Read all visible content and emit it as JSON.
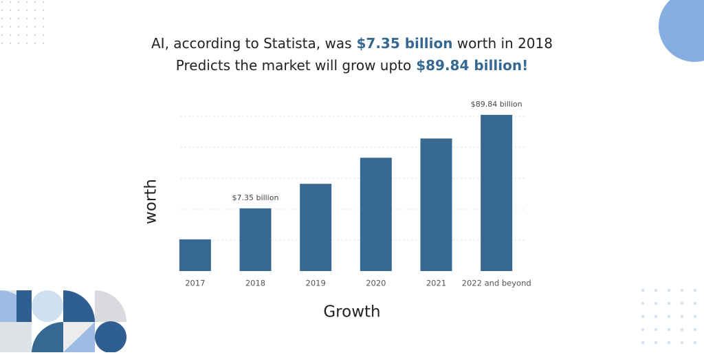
{
  "chart_data": {
    "type": "bar",
    "title_lines": [
      [
        "AI, according to Statista, was",
        "$7.35 billion",
        "worth in 2018"
      ],
      [
        "Predicts the market will grow upto",
        "$89.84 billion!"
      ]
    ],
    "x_label": "Growth",
    "y_label": "worth",
    "categories": [
      "2017",
      "2018",
      "2019",
      "2020",
      "2021",
      "2022 and beyond"
    ],
    "values": [
      -20,
      7.35,
      29,
      52,
      69,
      89.84
    ],
    "value_labels": [
      null,
      "$7.35 billion",
      null,
      null,
      null,
      "$89.84 billion"
    ],
    "color": "#376891",
    "ylim": [
      -48,
      92
    ]
  }
}
